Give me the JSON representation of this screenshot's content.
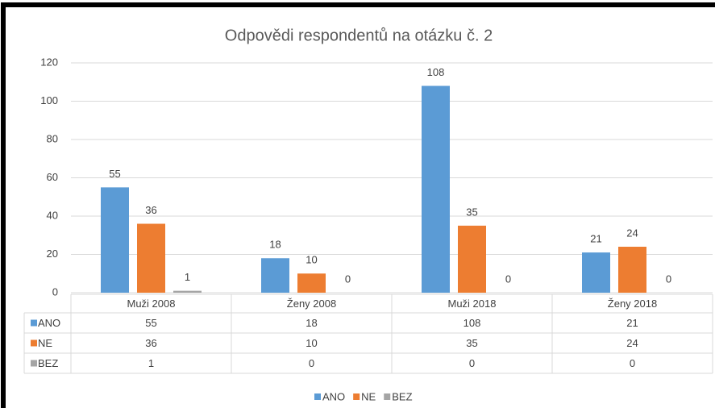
{
  "chart_data": {
    "type": "bar",
    "title": "Odpovědi respondentů na otázku č. 2",
    "categories": [
      "Muži 2008",
      "Ženy 2008",
      "Muži 2018",
      "Ženy 2018"
    ],
    "series": [
      {
        "name": "ANO",
        "color": "#5b9bd5",
        "values": [
          55,
          18,
          108,
          21
        ]
      },
      {
        "name": "NE",
        "color": "#ed7d31",
        "values": [
          36,
          10,
          35,
          24
        ]
      },
      {
        "name": "BEZ",
        "color": "#a5a5a5",
        "values": [
          1,
          0,
          0,
          0
        ]
      }
    ],
    "ylim": [
      0,
      120
    ],
    "yticks": [
      0,
      20,
      40,
      60,
      80,
      100,
      120
    ],
    "grid": true,
    "legend": "bottom",
    "data_table": true
  }
}
